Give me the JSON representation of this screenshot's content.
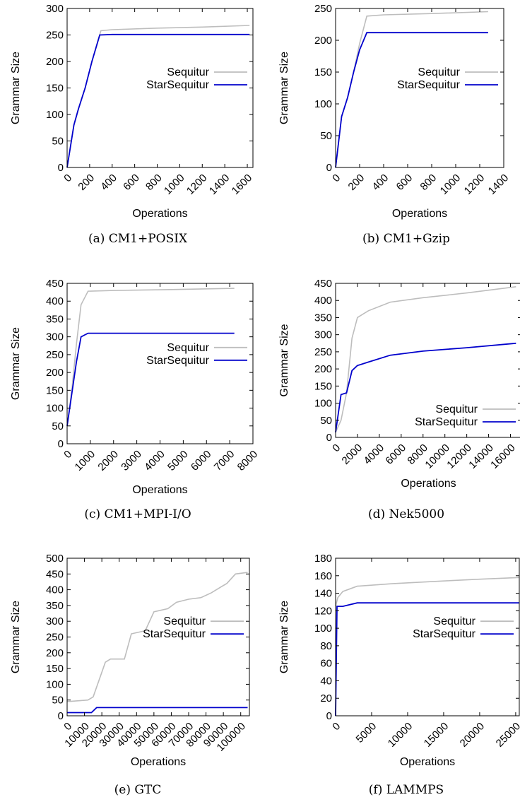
{
  "figure": {
    "axis_label_y": "Grammar Size",
    "axis_label_x": "Operations"
  },
  "colors": {
    "sequitur": "#bdbdbd",
    "starsequitur": "#0000cc",
    "axes": "#000000"
  },
  "chart_data": [
    {
      "type": "line",
      "caption": "(a)  CM1+POSIX",
      "xlabel": "Operations",
      "ylabel": "Grammar Size",
      "xlim": [
        0,
        1650
      ],
      "ylim": [
        0,
        300
      ],
      "xticks": [
        0,
        200,
        400,
        600,
        800,
        1000,
        1200,
        1400,
        1600
      ],
      "yticks": [
        0,
        50,
        100,
        150,
        200,
        250,
        300
      ],
      "legend": "right",
      "series": [
        {
          "name": "Sequitur",
          "color": "#bdbdbd",
          "x": [
            0,
            60,
            100,
            160,
            220,
            300,
            400,
            800,
            1200,
            1620
          ],
          "y": [
            0,
            80,
            110,
            150,
            200,
            258,
            260,
            263,
            265,
            268
          ]
        },
        {
          "name": "StarSequitur",
          "color": "#0000cc",
          "x": [
            0,
            60,
            100,
            160,
            220,
            290,
            400,
            800,
            1200,
            1620
          ],
          "y": [
            0,
            80,
            110,
            150,
            200,
            250,
            251,
            251,
            251,
            251
          ]
        }
      ]
    },
    {
      "type": "line",
      "caption": "(b)  CM1+Gzip",
      "xlabel": "Operations",
      "ylabel": "Grammar Size",
      "xlim": [
        0,
        1400
      ],
      "ylim": [
        0,
        250
      ],
      "xticks": [
        0,
        200,
        400,
        600,
        800,
        1000,
        1200,
        1400
      ],
      "yticks": [
        0,
        50,
        100,
        150,
        200,
        250
      ],
      "legend": "right",
      "series": [
        {
          "name": "Sequitur",
          "color": "#bdbdbd",
          "x": [
            0,
            50,
            100,
            150,
            200,
            260,
            400,
            800,
            1270
          ],
          "y": [
            0,
            80,
            110,
            150,
            195,
            238,
            240,
            242,
            245
          ]
        },
        {
          "name": "StarSequitur",
          "color": "#0000cc",
          "x": [
            0,
            50,
            100,
            150,
            200,
            260,
            400,
            800,
            1270
          ],
          "y": [
            0,
            80,
            110,
            150,
            185,
            212,
            212,
            212,
            212
          ]
        }
      ]
    },
    {
      "type": "line",
      "caption": "(c)  CM1+MPI-I/O",
      "xlabel": "Operations",
      "ylabel": "Grammar Size",
      "xlim": [
        0,
        8000
      ],
      "ylim": [
        0,
        450
      ],
      "xticks": [
        0,
        1000,
        2000,
        3000,
        4000,
        5000,
        6000,
        7000,
        8000
      ],
      "yticks": [
        0,
        50,
        100,
        150,
        200,
        250,
        300,
        350,
        400,
        450
      ],
      "legend": "right",
      "series": [
        {
          "name": "Sequitur",
          "color": "#bdbdbd",
          "x": [
            0,
            200,
            400,
            600,
            900,
            2000,
            4000,
            7200
          ],
          "y": [
            50,
            150,
            280,
            390,
            428,
            430,
            432,
            436
          ]
        },
        {
          "name": "StarSequitur",
          "color": "#0000cc",
          "x": [
            0,
            200,
            400,
            600,
            900,
            2000,
            4000,
            7200
          ],
          "y": [
            50,
            140,
            230,
            300,
            310,
            310,
            310,
            310
          ]
        }
      ]
    },
    {
      "type": "line",
      "caption": "(d)  Nek5000",
      "xlabel": "Operations",
      "ylabel": "Grammar Size",
      "xlim": [
        0,
        17000
      ],
      "ylim": [
        0,
        450
      ],
      "xticks": [
        0,
        2000,
        4000,
        6000,
        8000,
        10000,
        12000,
        14000,
        16000
      ],
      "yticks": [
        0,
        50,
        100,
        150,
        200,
        250,
        300,
        350,
        400,
        450
      ],
      "legend": "bottom-right",
      "series": [
        {
          "name": "Sequitur",
          "color": "#bdbdbd",
          "x": [
            0,
            500,
            1000,
            1500,
            2000,
            3000,
            5000,
            8000,
            12000,
            16500
          ],
          "y": [
            15,
            50,
            130,
            290,
            350,
            370,
            395,
            408,
            422,
            440
          ]
        },
        {
          "name": "StarSequitur",
          "color": "#0000cc",
          "x": [
            0,
            500,
            1000,
            1500,
            2000,
            3000,
            5000,
            8000,
            12000,
            16500
          ],
          "y": [
            15,
            125,
            130,
            195,
            210,
            220,
            240,
            252,
            262,
            275
          ]
        }
      ]
    },
    {
      "type": "line",
      "caption": "(e)  GTC",
      "xlabel": "Operations",
      "ylabel": "Grammar Size",
      "xlim": [
        0,
        105000
      ],
      "ylim": [
        0,
        500
      ],
      "xticks": [
        0,
        10000,
        20000,
        30000,
        40000,
        50000,
        60000,
        70000,
        80000,
        90000,
        100000
      ],
      "yticks": [
        0,
        50,
        100,
        150,
        200,
        250,
        300,
        350,
        400,
        450,
        500
      ],
      "legend": "right",
      "series": [
        {
          "name": "Sequitur",
          "color": "#bdbdbd",
          "x": [
            0,
            12000,
            15000,
            22000,
            25000,
            33000,
            37000,
            45000,
            50000,
            58000,
            63000,
            70000,
            77000,
            83000,
            89000,
            92000,
            97000,
            104000
          ],
          "y": [
            45,
            50,
            60,
            170,
            180,
            180,
            260,
            270,
            330,
            340,
            360,
            370,
            375,
            390,
            410,
            420,
            450,
            455
          ]
        },
        {
          "name": "StarSequitur",
          "color": "#0000cc",
          "x": [
            0,
            14000,
            17000,
            104000
          ],
          "y": [
            10,
            10,
            26,
            26
          ]
        }
      ]
    },
    {
      "type": "line",
      "caption": "(f)  LAMMPS",
      "xlabel": "Operations",
      "ylabel": "Grammar Size",
      "xlim": [
        0,
        25500
      ],
      "ylim": [
        0,
        180
      ],
      "xticks": [
        0,
        5000,
        10000,
        15000,
        20000,
        25000
      ],
      "yticks": [
        0,
        20,
        40,
        60,
        80,
        100,
        120,
        140,
        160,
        180
      ],
      "legend": "right",
      "series": [
        {
          "name": "Sequitur",
          "color": "#bdbdbd",
          "x": [
            0,
            300,
            1000,
            3000,
            8000,
            15000,
            20000,
            25500
          ],
          "y": [
            125,
            135,
            142,
            148,
            151,
            154,
            156,
            158
          ]
        },
        {
          "name": "StarSequitur",
          "color": "#0000cc",
          "x": [
            0,
            200,
            1000,
            3000,
            25500
          ],
          "y": [
            0,
            125,
            125,
            129,
            129
          ]
        }
      ]
    }
  ]
}
